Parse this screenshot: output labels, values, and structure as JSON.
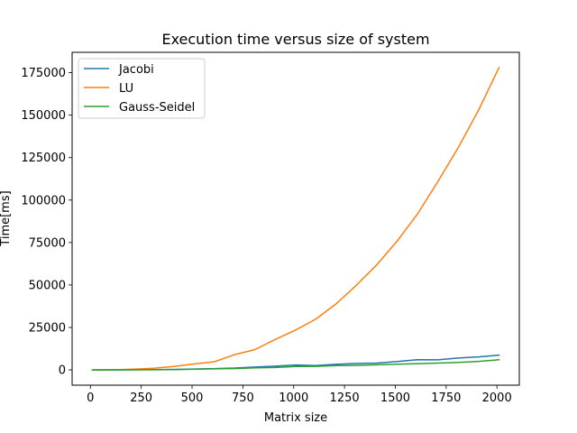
{
  "chart_data": {
    "type": "line",
    "title": "Execution time versus size of system",
    "xlabel": "Matrix size",
    "ylabel": "Time[ms]",
    "xlim": [
      -90,
      2110
    ],
    "ylim": [
      -9000,
      187000
    ],
    "xticks": [
      0,
      250,
      500,
      750,
      1000,
      1250,
      1500,
      1750,
      2000
    ],
    "yticks": [
      0,
      25000,
      50000,
      75000,
      100000,
      125000,
      150000,
      175000
    ],
    "xtick_labels": [
      "0",
      "250",
      "500",
      "750",
      "1000",
      "1250",
      "1500",
      "1750",
      "2000"
    ],
    "ytick_labels": [
      "0",
      "25000",
      "50000",
      "75000",
      "100000",
      "125000",
      "150000",
      "175000"
    ],
    "legend_position": "upper-left",
    "grid": false,
    "x": [
      10,
      110,
      210,
      310,
      410,
      510,
      610,
      710,
      810,
      910,
      1010,
      1110,
      1210,
      1310,
      1410,
      1510,
      1610,
      1710,
      1810,
      1910,
      2010
    ],
    "series": [
      {
        "name": "Jacobi",
        "color": "#1f77b4",
        "values": [
          0,
          20,
          60,
          150,
          300,
          500,
          800,
          1100,
          1700,
          2200,
          2900,
          2600,
          3300,
          3800,
          4000,
          4900,
          6000,
          5900,
          7000,
          7700,
          8700
        ]
      },
      {
        "name": "LU",
        "color": "#ff7f0e",
        "values": [
          0,
          100,
          400,
          1000,
          2000,
          3500,
          4800,
          9000,
          12000,
          18000,
          23500,
          30000,
          39000,
          50000,
          62000,
          76000,
          92000,
          111000,
          131000,
          153000,
          178000
        ]
      },
      {
        "name": "Gauss-Seidel",
        "color": "#2ca02c",
        "values": [
          0,
          20,
          50,
          100,
          200,
          400,
          600,
          800,
          1200,
          1400,
          2000,
          2100,
          2500,
          2700,
          3000,
          3400,
          3700,
          4000,
          4400,
          5000,
          6000
        ]
      }
    ]
  }
}
